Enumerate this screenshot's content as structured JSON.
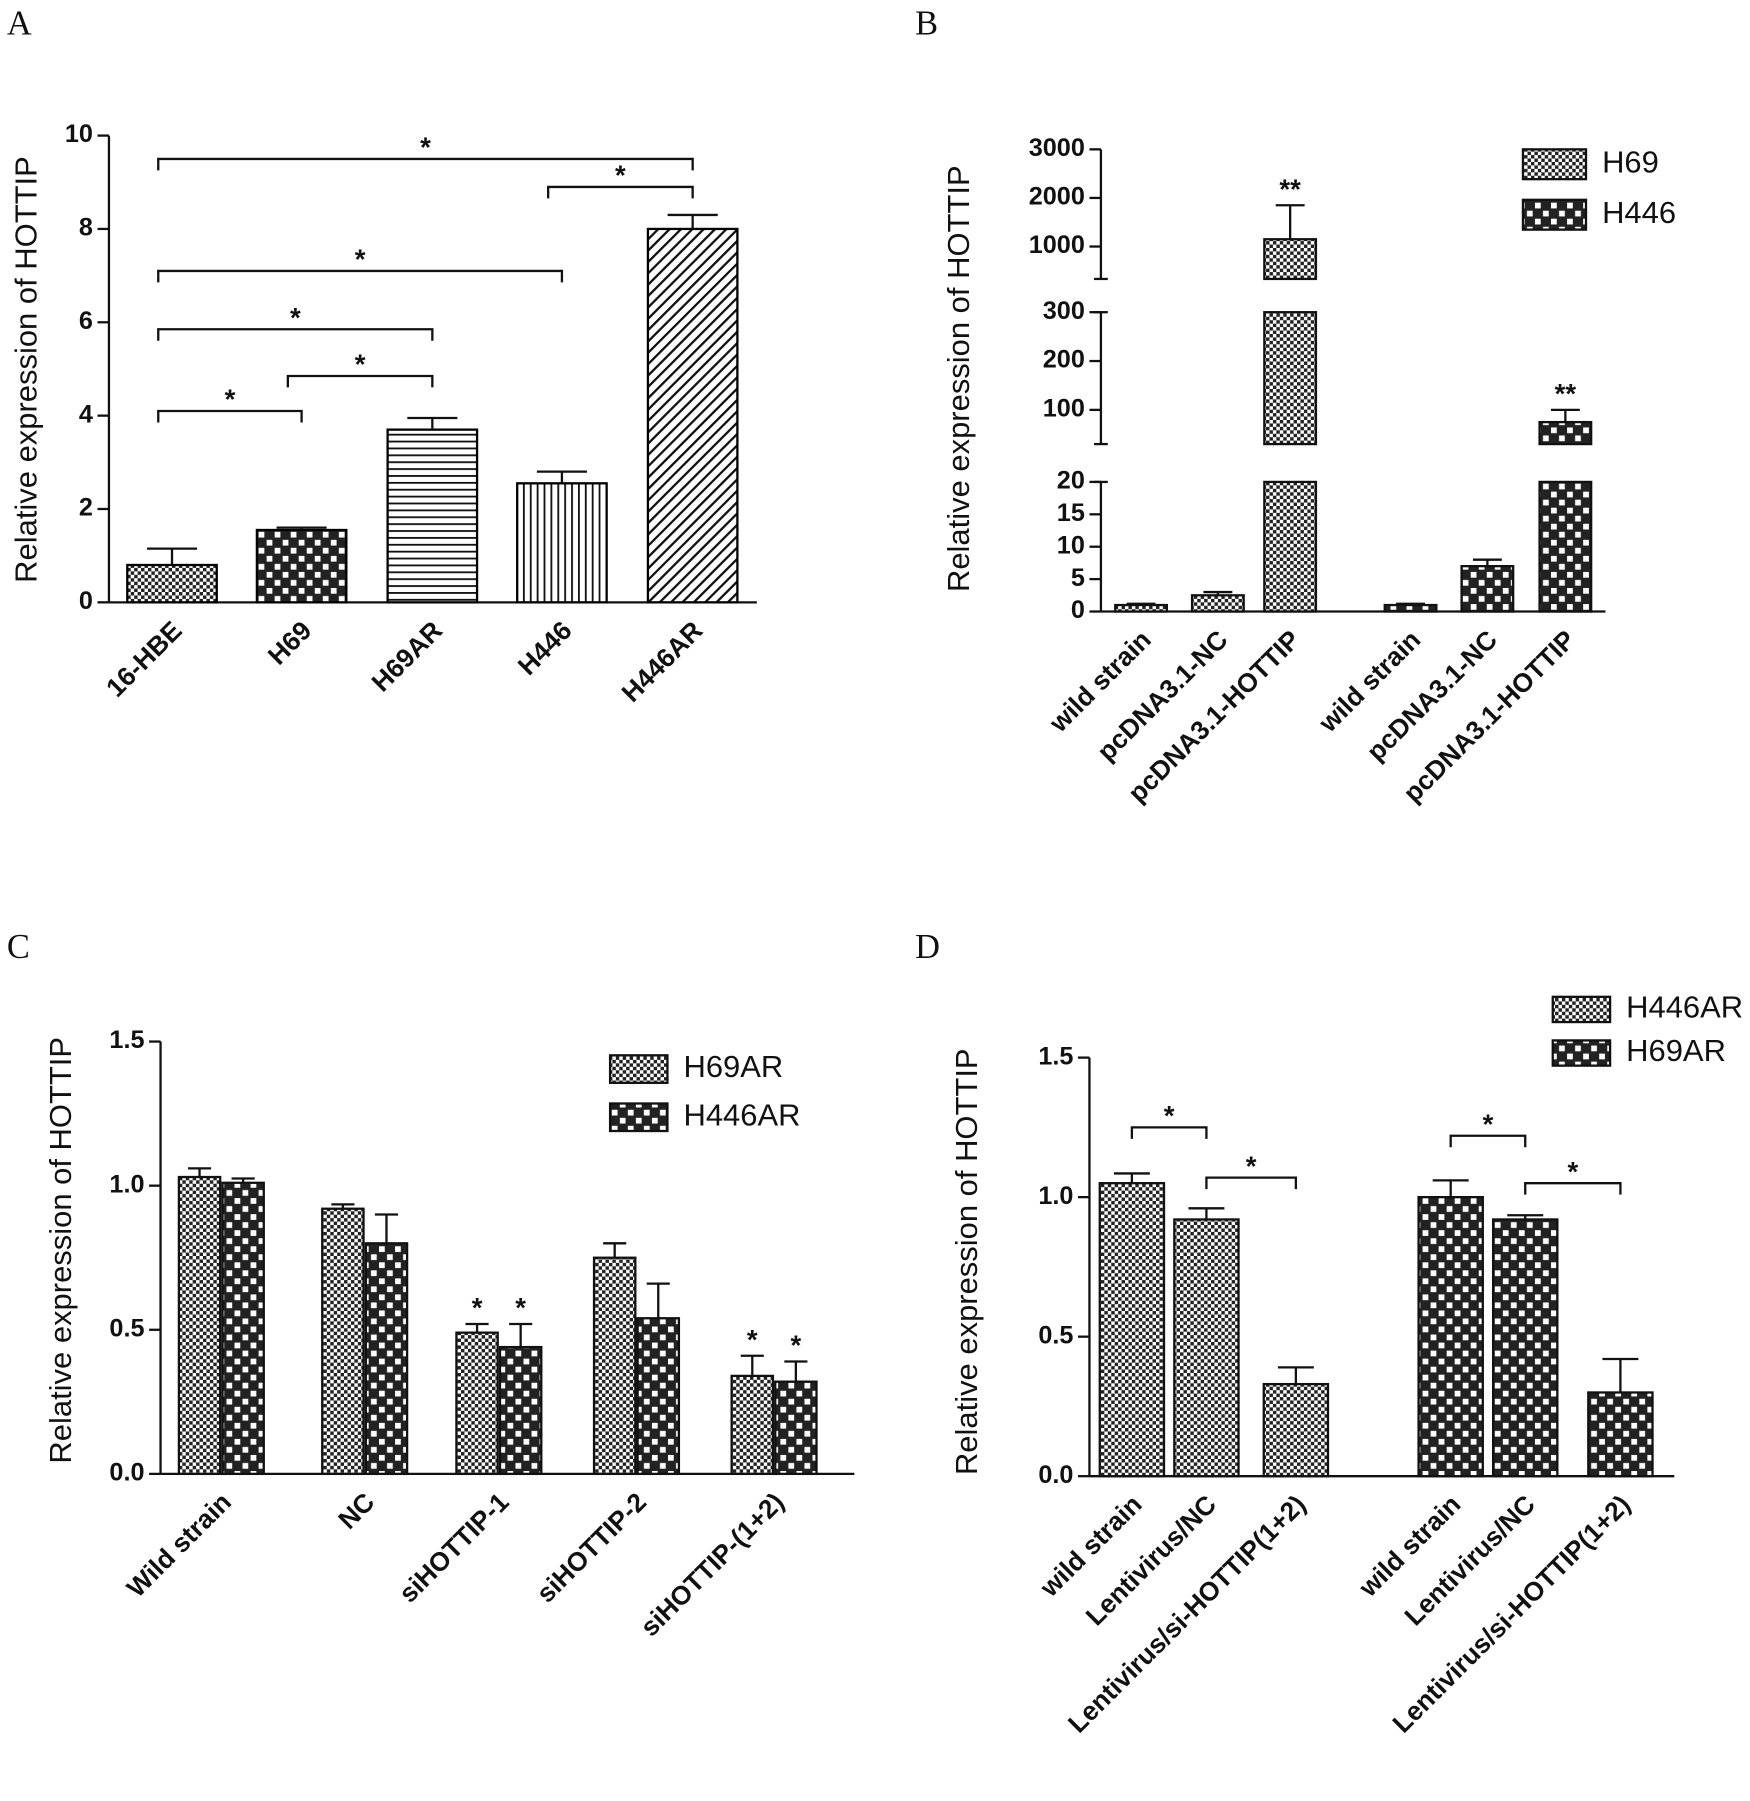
{
  "chart_data": [
    {
      "panel": "A",
      "type": "bar",
      "ylabel": "Relative expression of HOTTIP",
      "categories": [
        "16-HBE",
        "H69",
        "H69AR",
        "H446",
        "H446AR"
      ],
      "values": [
        0.8,
        1.55,
        3.7,
        2.55,
        8.0
      ],
      "errors": [
        0.35,
        0.05,
        0.25,
        0.25,
        0.3
      ],
      "patterns": [
        "fine-check",
        "check",
        "hlines",
        "vlines",
        "diag"
      ],
      "color": "#000000",
      "ylim": [
        0,
        10
      ],
      "yticks": [
        0,
        2,
        4,
        6,
        8,
        10
      ],
      "brackets": [
        {
          "from": 0,
          "to": 4,
          "y": 9.5,
          "text": "*"
        },
        {
          "from": 3,
          "to": 4,
          "y": 8.9,
          "text": "*"
        },
        {
          "from": 0,
          "to": 3,
          "y": 7.1,
          "text": "*"
        },
        {
          "from": 0,
          "to": 2,
          "y": 5.85,
          "text": "*"
        },
        {
          "from": 1,
          "to": 2,
          "y": 4.85,
          "text": "*"
        },
        {
          "from": 0,
          "to": 1,
          "y": 4.1,
          "text": "*"
        }
      ]
    },
    {
      "panel": "B",
      "type": "grouped_bar",
      "ylabel": "Relative expression of HOTTIP",
      "categories": [
        "wild strain",
        "pcDNA3.1-NC",
        "pcDNA3.1-HOTTIP"
      ],
      "series": [
        {
          "name": "H69",
          "pattern": "fine-check",
          "values": [
            1,
            2.5,
            1150
          ],
          "errors": [
            0.2,
            0.5,
            700
          ]
        },
        {
          "name": "H446",
          "pattern": "check",
          "values": [
            1,
            7,
            75
          ],
          "errors": [
            0.2,
            1,
            25
          ]
        }
      ],
      "ysegments": [
        {
          "ylim": [
            0,
            20
          ],
          "yticks": [
            0,
            5,
            10,
            15,
            20
          ]
        },
        {
          "ylim": [
            30,
            300
          ],
          "yticks": [
            100,
            200,
            300
          ]
        },
        {
          "ylim": [
            333,
            3000
          ],
          "yticks": [
            1000,
            2000,
            3000
          ]
        }
      ],
      "legend": "upper right",
      "annotations": [
        {
          "series": 0,
          "index": 2,
          "text": "**"
        },
        {
          "series": 1,
          "index": 2,
          "text": "**"
        }
      ]
    },
    {
      "panel": "C",
      "type": "bar",
      "ylabel": "Relative expression of HOTTIP",
      "categories": [
        "Wild strain",
        "NC",
        "siHOTTIP-1",
        "siHOTTIP-2",
        "siHOTTIP-(1+2)"
      ],
      "series": [
        {
          "name": "H69AR",
          "pattern": "fine-check",
          "values": [
            1.03,
            0.92,
            0.49,
            0.75,
            0.34
          ],
          "errors": [
            0.03,
            0.015,
            0.03,
            0.05,
            0.07
          ]
        },
        {
          "name": "H446AR",
          "pattern": "check",
          "values": [
            1.01,
            0.8,
            0.44,
            0.54,
            0.32
          ],
          "errors": [
            0.015,
            0.1,
            0.08,
            0.12,
            0.07
          ]
        }
      ],
      "ylim": [
        0,
        1.5
      ],
      "yticks": [
        {
          "value": 0,
          "label": "0.0"
        },
        0.5,
        {
          "value": 1,
          "label": "1.0"
        },
        1.5
      ],
      "legend": "upper right",
      "annotations": [
        {
          "series": 0,
          "index": 2,
          "text": "*"
        },
        {
          "series": 1,
          "index": 2,
          "text": "*"
        },
        {
          "series": 0,
          "index": 4,
          "text": "*"
        },
        {
          "series": 1,
          "index": 4,
          "text": "*"
        }
      ]
    },
    {
      "panel": "D",
      "type": "grouped_bar",
      "ylabel": "Relative expression of HOTTIP",
      "categories": [
        "wild strain",
        "Lentivirus/NC",
        "Lentivirus/si-HOTTIP(1+2)"
      ],
      "series": [
        {
          "name": "H446AR",
          "pattern": "fine-check",
          "values": [
            1.05,
            0.92,
            0.33
          ],
          "errors": [
            0.035,
            0.04,
            0.06
          ]
        },
        {
          "name": "H69AR",
          "pattern": "check",
          "values": [
            1.0,
            0.92,
            0.3
          ],
          "errors": [
            0.06,
            0.015,
            0.12
          ]
        }
      ],
      "ylim": [
        0,
        1.5
      ],
      "yticks": [
        {
          "value": 0,
          "label": "0.0"
        },
        0.5,
        {
          "value": 1,
          "label": "1.0"
        },
        1.5
      ],
      "legend": "upper right",
      "brackets": [
        {
          "series": 0,
          "from": 0,
          "to": 1,
          "y": 1.25,
          "text": "*"
        },
        {
          "series": 0,
          "from": 1,
          "to": 2,
          "y": 1.07,
          "text": "*"
        },
        {
          "series": 1,
          "from": 0,
          "to": 1,
          "y": 1.22,
          "text": "*"
        },
        {
          "series": 1,
          "from": 1,
          "to": 2,
          "y": 1.05,
          "text": "*"
        }
      ]
    }
  ]
}
